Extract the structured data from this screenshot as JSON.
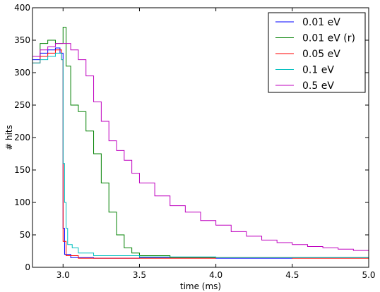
{
  "chart_data": {
    "type": "line",
    "style": "step",
    "xlabel": "time (ms)",
    "ylabel": "# hits",
    "xlim": [
      2.8,
      5.0
    ],
    "ylim": [
      0,
      400
    ],
    "xticks": [
      3.0,
      3.5,
      4.0,
      4.5,
      5.0
    ],
    "xtick_labels": [
      "3.0",
      "3.5",
      "4.0",
      "4.5",
      "5.0"
    ],
    "yticks": [
      0,
      50,
      100,
      150,
      200,
      250,
      300,
      350,
      400
    ],
    "ytick_labels": [
      "0",
      "50",
      "100",
      "150",
      "200",
      "250",
      "300",
      "350",
      "400"
    ],
    "grid": false,
    "legend_position": "top-right",
    "series": [
      {
        "name": "0.01 eV",
        "color": "#0000ff",
        "points": [
          [
            2.8,
            320
          ],
          [
            2.85,
            330
          ],
          [
            2.9,
            335
          ],
          [
            2.95,
            338
          ],
          [
            2.98,
            330
          ],
          [
            3.0,
            60
          ],
          [
            3.01,
            20
          ],
          [
            3.05,
            15
          ],
          [
            3.2,
            14
          ],
          [
            3.5,
            15
          ],
          [
            4.0,
            14
          ],
          [
            4.5,
            15
          ],
          [
            5.0,
            14
          ]
        ]
      },
      {
        "name": "0.01 eV (r)",
        "color": "#008000",
        "points": [
          [
            2.8,
            325
          ],
          [
            2.85,
            345
          ],
          [
            2.9,
            350
          ],
          [
            2.95,
            345
          ],
          [
            3.0,
            370
          ],
          [
            3.02,
            310
          ],
          [
            3.05,
            250
          ],
          [
            3.1,
            240
          ],
          [
            3.15,
            210
          ],
          [
            3.2,
            175
          ],
          [
            3.25,
            130
          ],
          [
            3.3,
            85
          ],
          [
            3.35,
            50
          ],
          [
            3.4,
            30
          ],
          [
            3.45,
            22
          ],
          [
            3.5,
            18
          ],
          [
            3.7,
            15
          ],
          [
            4.0,
            15
          ],
          [
            4.5,
            15
          ],
          [
            5.0,
            15
          ]
        ]
      },
      {
        "name": "0.05 eV",
        "color": "#ff0000",
        "points": [
          [
            2.8,
            315
          ],
          [
            2.85,
            325
          ],
          [
            2.9,
            330
          ],
          [
            2.95,
            335
          ],
          [
            2.99,
            320
          ],
          [
            3.0,
            40
          ],
          [
            3.02,
            18
          ],
          [
            3.1,
            14
          ],
          [
            3.5,
            14
          ],
          [
            4.0,
            15
          ],
          [
            4.5,
            14
          ],
          [
            5.0,
            15
          ]
        ]
      },
      {
        "name": "0.1 eV",
        "color": "#00bfbf",
        "points": [
          [
            2.8,
            315
          ],
          [
            2.85,
            320
          ],
          [
            2.9,
            325
          ],
          [
            2.95,
            330
          ],
          [
            2.99,
            320
          ],
          [
            3.0,
            160
          ],
          [
            3.01,
            100
          ],
          [
            3.02,
            60
          ],
          [
            3.03,
            35
          ],
          [
            3.06,
            30
          ],
          [
            3.1,
            22
          ],
          [
            3.2,
            18
          ],
          [
            3.5,
            16
          ],
          [
            4.0,
            15
          ],
          [
            4.5,
            15
          ],
          [
            5.0,
            15
          ]
        ]
      },
      {
        "name": "0.5 eV",
        "color": "#bf00bf",
        "points": [
          [
            2.8,
            325
          ],
          [
            2.85,
            335
          ],
          [
            2.9,
            340
          ],
          [
            2.95,
            345
          ],
          [
            3.0,
            345
          ],
          [
            3.05,
            335
          ],
          [
            3.1,
            320
          ],
          [
            3.15,
            295
          ],
          [
            3.2,
            255
          ],
          [
            3.25,
            225
          ],
          [
            3.3,
            195
          ],
          [
            3.35,
            180
          ],
          [
            3.4,
            165
          ],
          [
            3.45,
            145
          ],
          [
            3.5,
            130
          ],
          [
            3.6,
            110
          ],
          [
            3.7,
            95
          ],
          [
            3.8,
            85
          ],
          [
            3.9,
            72
          ],
          [
            4.0,
            65
          ],
          [
            4.1,
            55
          ],
          [
            4.2,
            48
          ],
          [
            4.3,
            42
          ],
          [
            4.4,
            38
          ],
          [
            4.5,
            35
          ],
          [
            4.6,
            32
          ],
          [
            4.7,
            30
          ],
          [
            4.8,
            28
          ],
          [
            4.9,
            26
          ],
          [
            5.0,
            25
          ]
        ]
      }
    ]
  }
}
